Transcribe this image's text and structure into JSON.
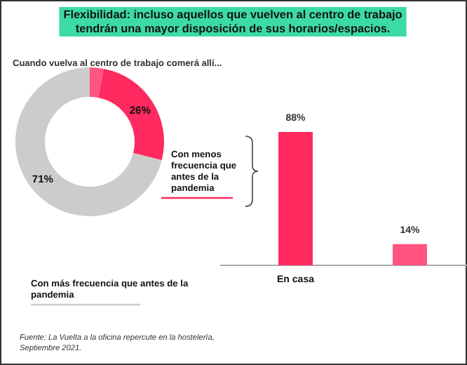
{
  "chart_data": [
    {
      "type": "donut",
      "title": "Flexibilidad: incluso aquellos que vuelven al centro de trabajo tendrán una mayor disposición de sus horarios/espacios.",
      "subtitle": "Cuando vuelva al centro de trabajo comerá allí...",
      "categories": [
        null,
        "Con menos frecuencia que antes de la pandemia",
        "Con más frecuencia que antes de la pandemia"
      ],
      "values": [
        3,
        26,
        71
      ],
      "colors": [
        "#ff5580",
        "#ff2a5f",
        "#cccccc"
      ],
      "value_labels": [
        null,
        "26%",
        "71%"
      ],
      "annotations": [
        "Fuente: La Vuelta a la oficina repercute en la hostelería, Septiembre 2021."
      ]
    },
    {
      "type": "bar",
      "categories": [
        "En casa",
        null
      ],
      "values": [
        88,
        14
      ],
      "colors": [
        "#ff2a5f",
        "#ff5580"
      ],
      "value_labels": [
        "88%",
        "14%"
      ]
    }
  ]
}
